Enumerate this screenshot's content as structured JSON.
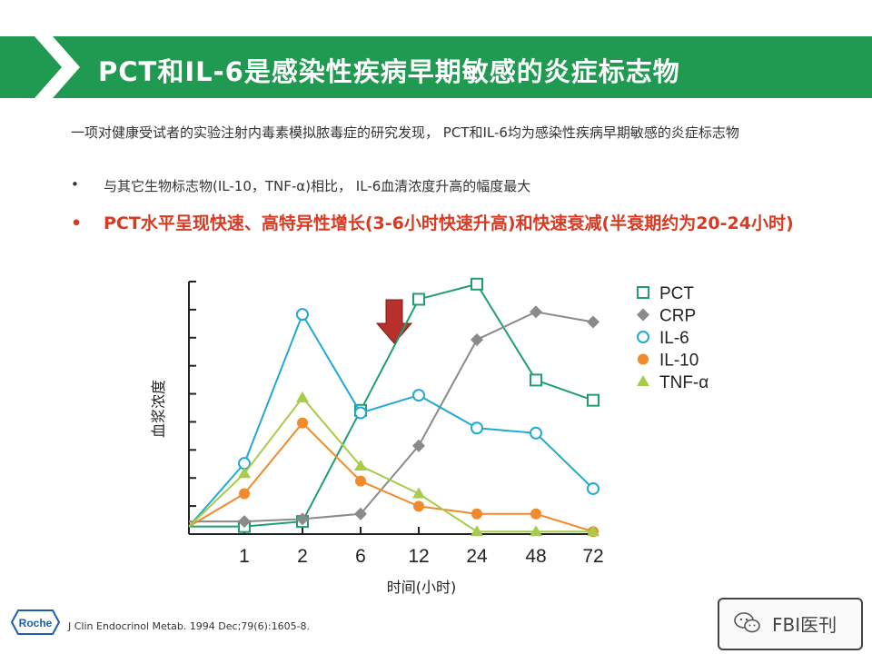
{
  "slide": {
    "title": "PCT和IL-6是感染性疾病早期敏感的炎症标志物",
    "intro": "一项对健康受试者的实验注射内毒素模拟脓毒症的研究发现， PCT和IL-6均为感染性疾病早期敏感的炎症标志物",
    "bullets": [
      "与其它生物标志物(IL-10，TNF-α)相比， IL-6血清浓度升高的幅度最大",
      "PCT水平呈现快速、高特异性增长(3-6小时快速升高)和快速衰减(半衰期约为20-24小时)"
    ],
    "bullet_marker": "•",
    "citation": "J Clin Endocrinol Metab. 1994 Dec;79(6):1605-8.",
    "logo_text": "Roche",
    "watermark": "FBI医刊",
    "colors": {
      "banner": "#1f9a50",
      "emphasis": "#d83a22",
      "arrow": "#b8302c"
    }
  },
  "chart_data": {
    "type": "line",
    "ylabel": "血浆浓度",
    "xlabel": "时间(小时)",
    "categories": [
      "0",
      "1",
      "2",
      "6",
      "12",
      "24",
      "48",
      "72"
    ],
    "tick_labels": [
      "",
      "1",
      "2",
      "6",
      "12",
      "24",
      "48",
      "72"
    ],
    "ylim": [
      0,
      100
    ],
    "yticks": 9,
    "arrow_at": "6-12",
    "legend_position": "top-right",
    "series": [
      {
        "name": "PCT",
        "color": "#1f9e6e",
        "marker": "square-open",
        "values": [
          3,
          3,
          5,
          49,
          93,
          99,
          61,
          53
        ]
      },
      {
        "name": "CRP",
        "color": "#8a8a8a",
        "marker": "diamond",
        "values": [
          5,
          5,
          6,
          8,
          35,
          77,
          88,
          84
        ]
      },
      {
        "name": "IL-6",
        "color": "#1fa9d4",
        "marker": "circle-open",
        "values": [
          3,
          28,
          87,
          48,
          55,
          42,
          40,
          18
        ]
      },
      {
        "name": "IL-10",
        "color": "#f08a2c",
        "marker": "circle",
        "values": [
          3,
          16,
          44,
          21,
          11,
          8,
          8,
          1
        ]
      },
      {
        "name": "TNF-α",
        "color": "#a6cc4a",
        "marker": "triangle",
        "values": [
          3,
          24,
          54,
          27,
          16,
          1,
          1,
          1
        ]
      }
    ]
  }
}
